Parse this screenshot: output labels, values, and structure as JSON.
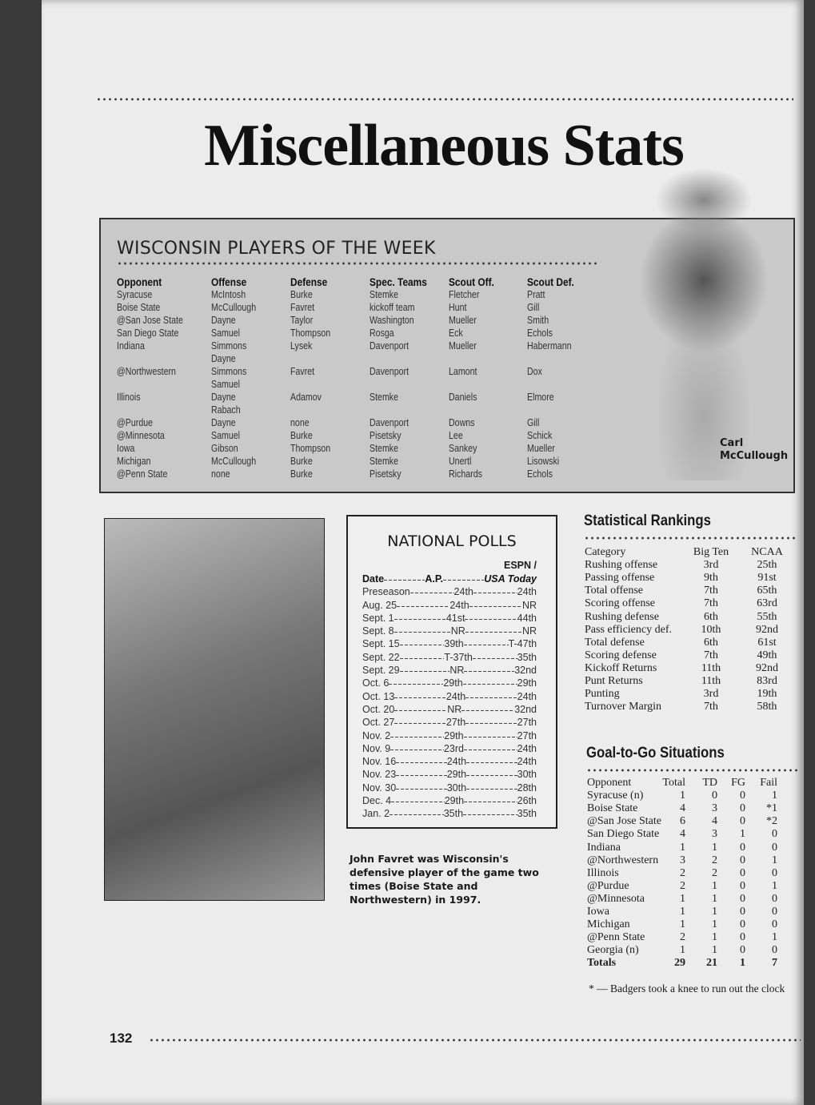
{
  "title": "Miscellaneous Stats",
  "players_of_week": {
    "heading": "WISCONSIN PLAYERS OF THE WEEK",
    "columns": [
      {
        "header": "Opponent",
        "cells": [
          "Syracuse",
          "Boise State",
          "@San Jose State",
          "San Diego State",
          "Indiana",
          "",
          "@Northwestern",
          "",
          "Illinois",
          "",
          "@Purdue",
          "@Minnesota",
          "Iowa",
          "Michigan",
          "@Penn State"
        ]
      },
      {
        "header": "Offense",
        "cells": [
          "McIntosh",
          "McCullough",
          "Dayne",
          "Samuel",
          "Simmons",
          "Dayne",
          "Simmons",
          "Samuel",
          "Dayne",
          "Rabach",
          "Dayne",
          "Samuel",
          "Gibson",
          "McCullough",
          "none"
        ]
      },
      {
        "header": "Defense",
        "cells": [
          "Burke",
          "Favret",
          "Taylor",
          "Thompson",
          "Lysek",
          "",
          "Favret",
          "",
          "Adamov",
          "",
          "none",
          "Burke",
          "Thompson",
          "Burke",
          "Burke"
        ]
      },
      {
        "header": "Spec. Teams",
        "cells": [
          "Stemke",
          "kickoff team",
          "Washington",
          "Rosga",
          "Davenport",
          "",
          "Davenport",
          "",
          "Stemke",
          "",
          "Davenport",
          "Pisetsky",
          "Stemke",
          "Stemke",
          "Pisetsky"
        ]
      },
      {
        "header": "Scout Off.",
        "cells": [
          "Fletcher",
          "Hunt",
          "Mueller",
          "Eck",
          "Mueller",
          "",
          "Lamont",
          "",
          "Daniels",
          "",
          "Downs",
          "Lee",
          "Sankey",
          "Unertl",
          "Richards"
        ]
      },
      {
        "header": "Scout Def.",
        "cells": [
          "Pratt",
          "Gill",
          "Smith",
          "Echols",
          "Habermann",
          "",
          "Dox",
          "",
          "Elmore",
          "",
          "Gill",
          "Schick",
          "Mueller",
          "Lisowski",
          "Echols"
        ]
      }
    ],
    "photo_caption": "Carl McCullough"
  },
  "polls": {
    "title": "NATIONAL POLLS",
    "header_top": "ESPN /",
    "headers": [
      "Date",
      "A.P.",
      "USA Today"
    ],
    "rows": [
      [
        "Preseason",
        "24th",
        "24th"
      ],
      [
        "Aug. 25",
        "24th",
        "NR"
      ],
      [
        "Sept. 1",
        "41st",
        "44th"
      ],
      [
        "Sept. 8",
        "NR",
        "NR"
      ],
      [
        "Sept. 15",
        "39th",
        "T-47th"
      ],
      [
        "Sept. 22",
        "T-37th",
        "35th"
      ],
      [
        "Sept. 29",
        "NR",
        "32nd"
      ],
      [
        "Oct. 6",
        "29th",
        "29th"
      ],
      [
        "Oct. 13",
        "24th",
        "24th"
      ],
      [
        "Oct. 20",
        "NR",
        "32nd"
      ],
      [
        "Oct. 27",
        "27th",
        "27th"
      ],
      [
        "Nov. 2",
        "29th",
        "27th"
      ],
      [
        "Nov. 9",
        "23rd",
        "24th"
      ],
      [
        "Nov. 16",
        "24th",
        "24th"
      ],
      [
        "Nov. 23",
        "29th",
        "30th"
      ],
      [
        "Nov. 30",
        "30th",
        "28th"
      ],
      [
        "Dec. 4",
        "29th",
        "26th"
      ],
      [
        "Jan. 2",
        "35th",
        "35th"
      ]
    ]
  },
  "favret_caption": "John Favret was Wisconsin's defensive player of the game two times (Boise State and Northwestern) in 1997.",
  "rankings": {
    "title": "Statistical Rankings",
    "headers": [
      "Category",
      "Big Ten",
      "NCAA"
    ],
    "rows": [
      [
        "Rushing offense",
        "3rd",
        "25th"
      ],
      [
        "Passing offense",
        "9th",
        "91st"
      ],
      [
        "Total offense",
        "7th",
        "65th"
      ],
      [
        "Scoring offense",
        "7th",
        "63rd"
      ],
      [
        "Rushing defense",
        "6th",
        "55th"
      ],
      [
        "Pass efficiency def.",
        "10th",
        "92nd"
      ],
      [
        "Total defense",
        "6th",
        "61st"
      ],
      [
        "Scoring defense",
        "7th",
        "49th"
      ],
      [
        "Kickoff Returns",
        "11th",
        "92nd"
      ],
      [
        "Punt Returns",
        "11th",
        "83rd"
      ],
      [
        "Punting",
        "3rd",
        "19th"
      ],
      [
        "Turnover Margin",
        "7th",
        "58th"
      ]
    ]
  },
  "goal_to_go": {
    "title": "Goal-to-Go Situations",
    "headers": [
      "Opponent",
      "Total",
      "TD",
      "FG",
      "Fail"
    ],
    "rows": [
      [
        "Syracuse (n)",
        "1",
        "0",
        "0",
        "1"
      ],
      [
        "Boise State",
        "4",
        "3",
        "0",
        "*1"
      ],
      [
        "@San Jose State",
        "6",
        "4",
        "0",
        "*2"
      ],
      [
        "San Diego State",
        "4",
        "3",
        "1",
        "0"
      ],
      [
        "Indiana",
        "1",
        "1",
        "0",
        "0"
      ],
      [
        "@Northwestern",
        "3",
        "2",
        "0",
        "1"
      ],
      [
        "Illinois",
        "2",
        "2",
        "0",
        "0"
      ],
      [
        "@Purdue",
        "2",
        "1",
        "0",
        "1"
      ],
      [
        "@Minnesota",
        "1",
        "1",
        "0",
        "0"
      ],
      [
        "Iowa",
        "1",
        "1",
        "0",
        "0"
      ],
      [
        "Michigan",
        "1",
        "1",
        "0",
        "0"
      ],
      [
        "@Penn State",
        "2",
        "1",
        "0",
        "1"
      ],
      [
        "Georgia (n)",
        "1",
        "1",
        "0",
        "0"
      ]
    ],
    "totals": [
      "Totals",
      "29",
      "21",
      "1",
      "7"
    ],
    "footnote": "* — Badgers took a knee to run out the clock"
  },
  "page_number": "132"
}
